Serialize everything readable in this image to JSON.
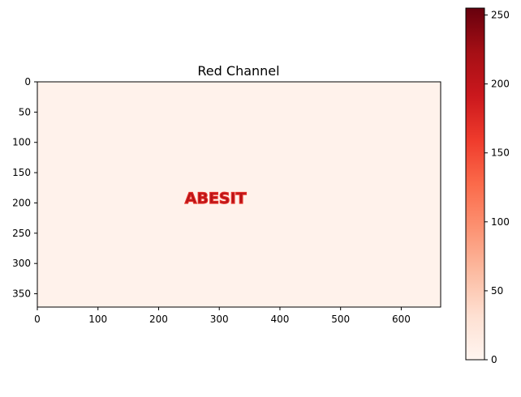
{
  "chart_data": [
    {
      "type": "heatmap",
      "title": "Red Channel",
      "colormap": "Reds",
      "background_value": 5,
      "embedded_text": "ABESIT",
      "embedded_text_center": [
        294,
        193
      ],
      "embedded_text_value": 210,
      "x_range": [
        0,
        665
      ],
      "y_range": [
        372,
        0
      ],
      "x_ticks": [
        0,
        100,
        200,
        300,
        400,
        500,
        600
      ],
      "y_ticks": [
        0,
        50,
        100,
        150,
        200,
        250,
        300,
        350
      ],
      "grid": false
    },
    {
      "type": "colorbar",
      "colormap": "Reds",
      "range": [
        0,
        255
      ],
      "ticks": [
        0,
        50,
        100,
        150,
        200,
        250
      ]
    }
  ]
}
